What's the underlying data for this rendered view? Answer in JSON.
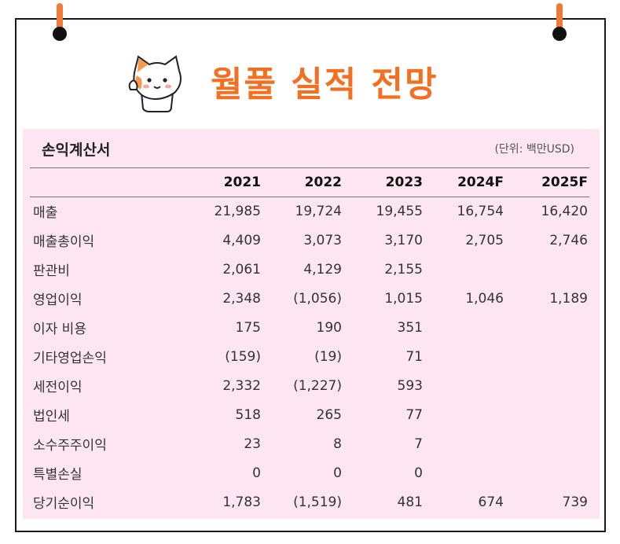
{
  "header": {
    "title": "월풀 실적 전망",
    "accent_color": "#f36f22"
  },
  "statement": {
    "title": "손익계산서",
    "unit": "(단위: 백만USD)",
    "panel_color": "#fde6f1",
    "columns": [
      "2021",
      "2022",
      "2023",
      "2024F",
      "2025F"
    ],
    "rows": [
      {
        "label": "매출",
        "values": [
          "21,985",
          "19,724",
          "19,455",
          "16,754",
          "16,420"
        ]
      },
      {
        "label": "매출총이익",
        "values": [
          "4,409",
          "3,073",
          "3,170",
          "2,705",
          "2,746"
        ]
      },
      {
        "label": "판관비",
        "values": [
          "2,061",
          "4,129",
          "2,155",
          "",
          ""
        ]
      },
      {
        "label": "영업이익",
        "values": [
          "2,348",
          "(1,056)",
          "1,015",
          "1,046",
          "1,189"
        ]
      },
      {
        "label": "이자 비용",
        "values": [
          "175",
          "190",
          "351",
          "",
          ""
        ]
      },
      {
        "label": "기타영업손익",
        "values": [
          "(159)",
          "(19)",
          "71",
          "",
          ""
        ]
      },
      {
        "label": "세전이익",
        "values": [
          "2,332",
          "(1,227)",
          "593",
          "",
          ""
        ]
      },
      {
        "label": "법인세",
        "values": [
          "518",
          "265",
          "77",
          "",
          ""
        ]
      },
      {
        "label": "소수주주이익",
        "values": [
          "23",
          "8",
          "7",
          "",
          ""
        ]
      },
      {
        "label": "특별손실",
        "values": [
          "0",
          "0",
          "0",
          "",
          ""
        ]
      },
      {
        "label": "당기순이익",
        "values": [
          "1,783",
          "(1,519)",
          "481",
          "674",
          "739"
        ]
      }
    ]
  },
  "icons": {
    "mascot": "cat-mascot-icon",
    "pins": "pin-icon"
  }
}
